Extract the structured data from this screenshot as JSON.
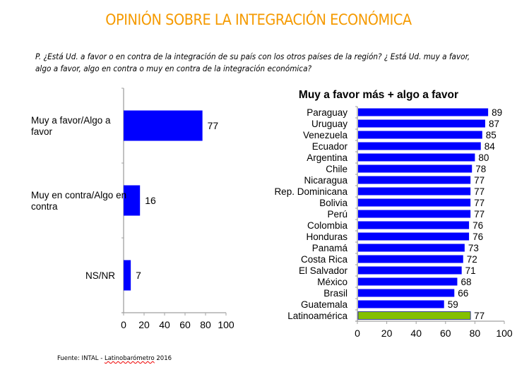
{
  "header": {
    "title": "OPINIÓN SOBRE LA INTEGRACIÓN ECONÓMICA",
    "question_line1": "P. ¿Está Ud. a favor o en contra de la integración de su país con los otros países de la región? ¿ Está Ud. muy a favor,",
    "question_line2": "algo a favor, algo en contra o muy en contra de la integración económica?"
  },
  "footer": {
    "source_prefix": "Fuente: INTAL - ",
    "source_name": "Latinobarómetro",
    "source_year": " 2016"
  },
  "colors": {
    "title": "#F59A00",
    "bar": "#0000FF",
    "highlight_bar": "#84C000",
    "axis": "#A0A0A0"
  },
  "chart_data": [
    {
      "type": "bar",
      "orientation": "horizontal",
      "title": "",
      "categories": [
        "Muy a favor/Algo a favor",
        "Muy en contra/Algo en contra",
        "NS/NR"
      ],
      "category_lines": [
        [
          "Muy a favor/Algo a",
          "favor"
        ],
        [
          "Muy en contra/Algo en",
          "contra"
        ],
        [
          "NS/NR"
        ]
      ],
      "values": [
        77,
        16,
        7
      ],
      "xlim": [
        0,
        100
      ],
      "xticks": [
        0,
        20,
        40,
        60,
        80,
        100
      ],
      "xlabel": "",
      "ylabel": "",
      "grid": false,
      "data_labels": true
    },
    {
      "type": "bar",
      "orientation": "horizontal",
      "title": "Muy a favor más + algo a favor",
      "categories": [
        "Paraguay",
        "Uruguay",
        "Venezuela",
        "Ecuador",
        "Argentina",
        "Chile",
        "Nicaragua",
        "Rep. Dominicana",
        "Bolivia",
        "Perú",
        "Colombia",
        "Honduras",
        "Panamá",
        "Costa Rica",
        "El Salvador",
        "México",
        "Brasil",
        "Guatemala",
        "Latinoamérica"
      ],
      "values": [
        89,
        87,
        85,
        84,
        80,
        78,
        77,
        77,
        77,
        77,
        76,
        76,
        73,
        72,
        71,
        68,
        66,
        59,
        77
      ],
      "highlight": "Latinoamérica",
      "xlim": [
        0,
        100
      ],
      "xticks": [
        0,
        20,
        40,
        60,
        80,
        100
      ],
      "xlabel": "",
      "ylabel": "",
      "grid": false,
      "data_labels": true
    }
  ]
}
